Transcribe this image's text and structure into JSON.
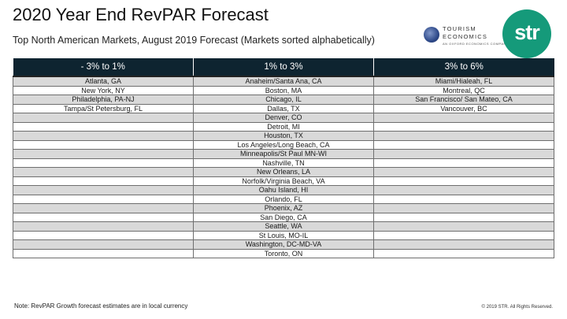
{
  "title": "2020 Year End RevPAR Forecast",
  "subtitle": "Top North American Markets, August 2019 Forecast (Markets sorted alphabetically)",
  "logos": {
    "tourism_economics": {
      "line1": "TOURISM",
      "line2": "ECONOMICS",
      "tagline": "AN OXFORD ECONOMICS COMPANY"
    },
    "str": {
      "text": "str",
      "color": "#159a7a"
    }
  },
  "table": {
    "header_color": "#0e2430",
    "columns": [
      "- 3% to 1%",
      "1% to 3%",
      "3% to 6%"
    ],
    "col1": [
      "Atlanta, GA",
      "New York, NY",
      "Philadelphia, PA-NJ",
      "Tampa/St Petersburg, FL"
    ],
    "col2": [
      "Anaheim/Santa Ana, CA",
      "Boston, MA",
      "Chicago, IL",
      "Dallas, TX",
      "Denver, CO",
      "Detroit, MI",
      "Houston, TX",
      "Los Angeles/Long Beach, CA",
      "Minneapolis/St Paul MN-WI",
      "Nashville, TN",
      "New Orleans, LA",
      "Norfolk/Virginia Beach, VA",
      "Oahu Island, HI",
      "Orlando, FL",
      "Phoenix, AZ",
      "San Diego, CA",
      "Seattle, WA",
      "St Louis, MO-IL",
      "Washington, DC-MD-VA",
      "Toronto, ON"
    ],
    "col3": [
      "Miami/Hialeah, FL",
      "Montreal, QC",
      "San Francisco/ San Mateo, CA",
      "Vancouver, BC"
    ]
  },
  "note": "Note: RevPAR Growth forecast estimates are in local currency",
  "copyright": "© 2019 STR. All Rights Reserved."
}
